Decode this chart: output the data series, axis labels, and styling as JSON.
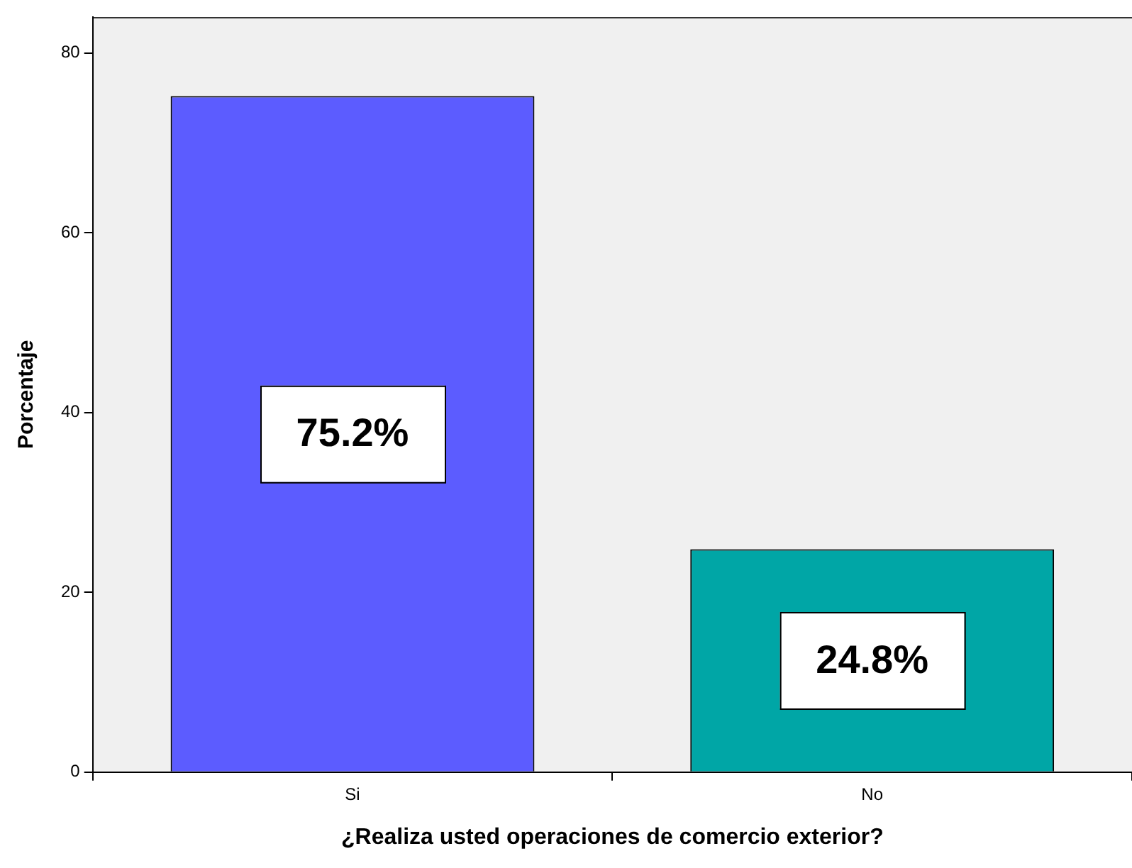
{
  "chart_data": {
    "type": "bar",
    "xlabel": "¿Realiza usted operaciones de comercio exterior?",
    "ylabel": "Porcentaje",
    "categories": [
      "Si",
      "No"
    ],
    "values": [
      75.2,
      24.8
    ],
    "colors": [
      "#5c5cff",
      "#00a6a6"
    ],
    "value_labels": [
      "75.2%",
      "24.8%"
    ],
    "ylim": [
      0,
      84
    ],
    "yticks": [
      0,
      20,
      40,
      60,
      80
    ],
    "grid": false,
    "legend": false
  }
}
